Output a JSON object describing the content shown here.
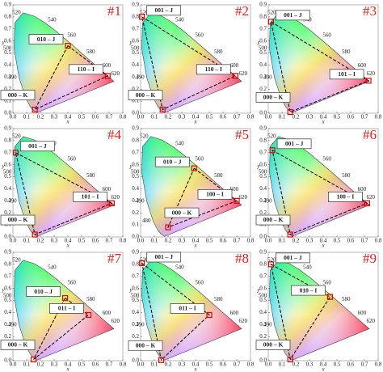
{
  "chart_data": [
    {
      "type": "scatter",
      "title": "#1",
      "x_label": "x",
      "y_label": "y",
      "xlim": [
        0,
        0.8
      ],
      "ylim": [
        0,
        0.9
      ],
      "xticks": [
        {
          "value": 0,
          "label": "0.0"
        },
        0.1,
        0.2,
        0.3,
        0.4,
        0.5,
        0.6,
        0.7,
        0.8
      ],
      "yticks": [
        {
          "value": 0,
          "label": "0.0"
        },
        0.1,
        0.2,
        0.3,
        0.4,
        0.5,
        0.6,
        0.7,
        0.8,
        0.9
      ],
      "locus_labels": [
        480,
        490,
        500,
        520,
        540,
        560,
        580,
        600,
        620
      ],
      "labels": [
        "010 – J",
        "110 – I",
        "000 – K"
      ],
      "x": [
        0.4,
        0.69,
        0.16
      ],
      "values": [
        0.56,
        0.31,
        0.03
      ],
      "color": "#e00000"
    },
    {
      "type": "scatter",
      "title": "#2",
      "x_label": "x",
      "y_label": "y",
      "xlim": [
        0,
        0.8
      ],
      "ylim": [
        0,
        0.9
      ],
      "xticks": [
        {
          "value": 0,
          "label": "0.0"
        },
        0.1,
        0.2,
        0.3,
        0.4,
        0.5,
        0.6,
        0.7,
        0.8
      ],
      "yticks": [
        {
          "value": 0,
          "label": "0.0"
        },
        0.1,
        0.2,
        0.3,
        0.4,
        0.5,
        0.6,
        0.7,
        0.8,
        0.9
      ],
      "locus_labels": [
        480,
        490,
        500,
        520,
        540,
        560,
        580,
        600,
        620
      ],
      "labels": [
        "001 – J",
        "110 – I",
        "000 – K"
      ],
      "x": [
        0.01,
        0.69,
        0.16
      ],
      "values": [
        0.8,
        0.31,
        0.03
      ],
      "color": "#e00000"
    },
    {
      "type": "scatter",
      "title": "#3",
      "x_label": "x",
      "y_label": "y",
      "xlim": [
        0,
        0.8
      ],
      "ylim": [
        0,
        0.9
      ],
      "xticks": [
        {
          "value": 0,
          "label": "0.0"
        },
        0.1,
        0.2,
        0.3,
        0.4,
        0.5,
        0.6,
        0.7,
        0.8
      ],
      "yticks": [
        {
          "value": 0,
          "label": "0.0"
        },
        0.1,
        0.2,
        0.3,
        0.4,
        0.5,
        0.6,
        0.7,
        0.8,
        0.9
      ],
      "locus_labels": [
        480,
        490,
        500,
        520,
        540,
        560,
        580,
        600,
        620
      ],
      "labels": [
        "001 – J",
        "101 – I",
        "000 – K"
      ],
      "x": [
        0.02,
        0.73,
        0.16
      ],
      "values": [
        0.76,
        0.27,
        0.01
      ],
      "color": "#e00000"
    },
    {
      "type": "scatter",
      "title": "#4",
      "x_label": "x",
      "y_label": "y",
      "xlim": [
        0,
        0.8
      ],
      "ylim": [
        0,
        0.9
      ],
      "xticks": [
        {
          "value": 0,
          "label": "0.0"
        },
        0.1,
        0.2,
        0.3,
        0.4,
        0.5,
        0.6,
        0.7,
        0.8
      ],
      "yticks": [
        {
          "value": 0,
          "label": "0.0"
        },
        0.1,
        0.2,
        0.3,
        0.4,
        0.5,
        0.6,
        0.7,
        0.8,
        0.9
      ],
      "locus_labels": [
        480,
        490,
        500,
        520,
        540,
        560,
        580,
        600,
        620
      ],
      "labels": [
        "001 – J",
        "101 – I",
        "000 – K"
      ],
      "x": [
        0.02,
        0.72,
        0.16
      ],
      "values": [
        0.7,
        0.28,
        0.02
      ],
      "color": "#e00000"
    },
    {
      "type": "scatter",
      "title": "#5",
      "x_label": "x",
      "y_label": "y",
      "xlim": [
        0,
        0.8
      ],
      "ylim": [
        0,
        0.9
      ],
      "xticks": [
        {
          "value": 0,
          "label": "0.0"
        },
        0.1,
        0.2,
        0.3,
        0.4,
        0.5,
        0.6,
        0.7,
        0.8
      ],
      "yticks": [
        {
          "value": 0,
          "label": "0.0"
        },
        0.1,
        0.2,
        0.3,
        0.4,
        0.5,
        0.6,
        0.7,
        0.8,
        0.9
      ],
      "locus_labels": [
        480,
        490,
        500,
        520,
        540,
        560,
        580,
        600,
        620
      ],
      "labels": [
        "010 – J",
        "100 – I",
        "000 – K"
      ],
      "x": [
        0.39,
        0.7,
        0.2
      ],
      "values": [
        0.57,
        0.3,
        0.08
      ],
      "color": "#e00000"
    },
    {
      "type": "scatter",
      "title": "#6",
      "x_label": "x",
      "y_label": "y",
      "xlim": [
        0,
        0.8
      ],
      "ylim": [
        0,
        0.9
      ],
      "xticks": [
        {
          "value": 0,
          "label": "0.0"
        },
        0.1,
        0.2,
        0.3,
        0.4,
        0.5,
        0.6,
        0.7,
        0.8
      ],
      "yticks": [
        {
          "value": 0,
          "label": "0.0"
        },
        0.1,
        0.2,
        0.3,
        0.4,
        0.5,
        0.6,
        0.7,
        0.8,
        0.9
      ],
      "locus_labels": [
        480,
        490,
        500,
        520,
        540,
        560,
        580,
        600,
        620
      ],
      "labels": [
        "001 – J",
        "100 – I",
        "000 – K"
      ],
      "x": [
        0.03,
        0.72,
        0.16
      ],
      "values": [
        0.72,
        0.28,
        0.02
      ],
      "color": "#e00000"
    },
    {
      "type": "scatter",
      "title": "#7",
      "x_label": "x",
      "y_label": "y",
      "xlim": [
        0,
        0.8
      ],
      "ylim": [
        0,
        0.9
      ],
      "xticks": [
        {
          "value": 0,
          "label": "0.0"
        },
        0.1,
        0.2,
        0.3,
        0.4,
        0.5,
        0.6,
        0.7,
        0.8
      ],
      "yticks": [
        {
          "value": 0,
          "label": "0.0"
        },
        0.1,
        0.2,
        0.3,
        0.4,
        0.5,
        0.6,
        0.7,
        0.8,
        0.9
      ],
      "locus_labels": [
        480,
        490,
        500,
        520,
        540,
        560,
        580,
        600,
        620
      ],
      "labels": [
        "010 – J",
        "011 – I",
        "000 – K"
      ],
      "x": [
        0.38,
        0.55,
        0.15
      ],
      "values": [
        0.52,
        0.38,
        0.01
      ],
      "color": "#e00000"
    },
    {
      "type": "scatter",
      "title": "#8",
      "x_label": "x",
      "y_label": "y",
      "xlim": [
        0,
        0.8
      ],
      "ylim": [
        0,
        0.9
      ],
      "xticks": [
        {
          "value": 0,
          "label": "0.0"
        },
        0.1,
        0.2,
        0.3,
        0.4,
        0.5,
        0.6,
        0.7,
        0.8
      ],
      "yticks": [
        {
          "value": 0,
          "label": "0.0"
        },
        0.1,
        0.2,
        0.3,
        0.4,
        0.5,
        0.6,
        0.7,
        0.8,
        0.9
      ],
      "locus_labels": [
        480,
        490,
        500,
        520,
        540,
        560,
        580,
        600,
        620
      ],
      "labels": [
        "001 – J",
        "011 – I",
        "000 – K"
      ],
      "x": [
        0.01,
        0.5,
        0.15
      ],
      "values": [
        0.81,
        0.38,
        0.005
      ],
      "color": "#e00000"
    },
    {
      "type": "scatter",
      "title": "#9",
      "x_label": "x",
      "y_label": "y",
      "xlim": [
        0,
        0.8
      ],
      "ylim": [
        0,
        0.9
      ],
      "xticks": [
        {
          "value": 0,
          "label": "0.0"
        },
        0.1,
        0.2,
        0.3,
        0.4,
        0.5,
        0.6,
        0.7,
        0.8
      ],
      "yticks": [
        {
          "value": 0,
          "label": "0.0"
        },
        0.1,
        0.2,
        0.3,
        0.4,
        0.5,
        0.6,
        0.7,
        0.8,
        0.9
      ],
      "locus_labels": [
        480,
        490,
        500,
        520,
        540,
        560,
        580,
        600,
        620
      ],
      "labels": [
        "001 – J",
        "010 – I",
        "000 – K"
      ],
      "x": [
        0.02,
        0.45,
        0.16
      ],
      "values": [
        0.8,
        0.53,
        0.01
      ],
      "color": "#e00000"
    }
  ]
}
